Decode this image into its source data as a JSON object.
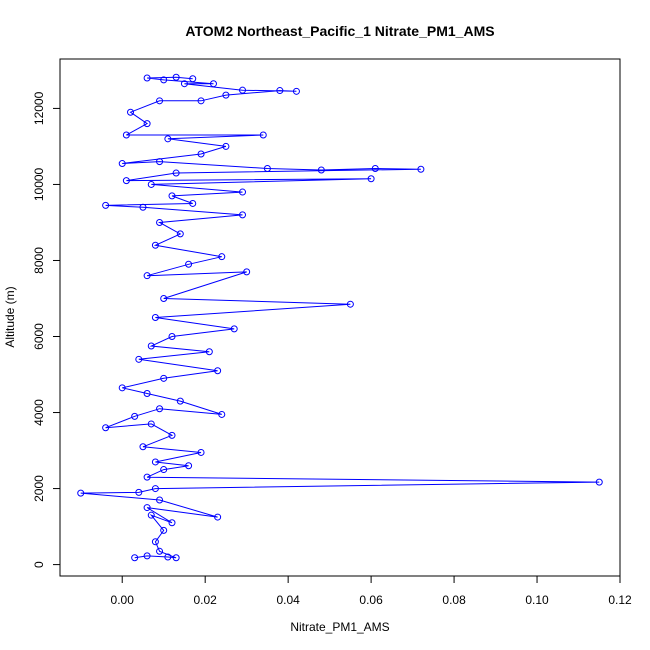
{
  "chart_data": {
    "type": "scatter",
    "title": "ATOM2 Northeast_Pacific_1 Nitrate_PM1_AMS",
    "xlabel": "Nitrate_PM1_AMS",
    "ylabel": "Altitude (m)",
    "xlim": [
      -0.015,
      0.12
    ],
    "ylim": [
      -300,
      13300
    ],
    "xticks": [
      0.0,
      0.02,
      0.04,
      0.06,
      0.08,
      0.1,
      0.12
    ],
    "xtick_labels": [
      "0.00",
      "0.02",
      "0.04",
      "0.06",
      "0.08",
      "0.10",
      "0.12"
    ],
    "yticks": [
      0,
      2000,
      4000,
      6000,
      8000,
      10000,
      12000
    ],
    "ytick_labels": [
      "0",
      "2000",
      "4000",
      "6000",
      "8000",
      "10000",
      "12000"
    ],
    "grid": false,
    "series": [
      {
        "color": "#0000ff",
        "marker": "open-circle",
        "line": true,
        "points": [
          [
            0.003,
            180
          ],
          [
            0.006,
            230
          ],
          [
            0.011,
            200
          ],
          [
            0.013,
            180
          ],
          [
            0.009,
            350
          ],
          [
            0.008,
            600
          ],
          [
            0.01,
            900
          ],
          [
            0.007,
            1300
          ],
          [
            0.012,
            1100
          ],
          [
            0.006,
            1500
          ],
          [
            0.023,
            1250
          ],
          [
            0.009,
            1700
          ],
          [
            -0.01,
            1880
          ],
          [
            0.004,
            1900
          ],
          [
            0.008,
            2000
          ],
          [
            0.115,
            2170
          ],
          [
            0.006,
            2300
          ],
          [
            0.01,
            2500
          ],
          [
            0.016,
            2600
          ],
          [
            0.008,
            2700
          ],
          [
            0.019,
            2950
          ],
          [
            0.005,
            3100
          ],
          [
            0.012,
            3400
          ],
          [
            0.007,
            3700
          ],
          [
            -0.004,
            3600
          ],
          [
            0.003,
            3900
          ],
          [
            0.009,
            4100
          ],
          [
            0.024,
            3950
          ],
          [
            0.014,
            4300
          ],
          [
            0.006,
            4500
          ],
          [
            0.0,
            4650
          ],
          [
            0.01,
            4900
          ],
          [
            0.023,
            5100
          ],
          [
            0.004,
            5400
          ],
          [
            0.021,
            5600
          ],
          [
            0.007,
            5750
          ],
          [
            0.012,
            6000
          ],
          [
            0.027,
            6200
          ],
          [
            0.008,
            6500
          ],
          [
            0.055,
            6850
          ],
          [
            0.01,
            7000
          ],
          [
            0.03,
            7700
          ],
          [
            0.006,
            7600
          ],
          [
            0.016,
            7900
          ],
          [
            0.024,
            8100
          ],
          [
            0.008,
            8400
          ],
          [
            0.014,
            8700
          ],
          [
            0.009,
            9000
          ],
          [
            0.029,
            9200
          ],
          [
            0.005,
            9400
          ],
          [
            -0.004,
            9450
          ],
          [
            0.017,
            9500
          ],
          [
            0.012,
            9700
          ],
          [
            0.029,
            9800
          ],
          [
            0.007,
            10000
          ],
          [
            0.06,
            10150
          ],
          [
            0.001,
            10100
          ],
          [
            0.013,
            10300
          ],
          [
            0.072,
            10400
          ],
          [
            0.061,
            10420
          ],
          [
            0.048,
            10380
          ],
          [
            0.035,
            10420
          ],
          [
            0.009,
            10600
          ],
          [
            0.0,
            10550
          ],
          [
            0.019,
            10800
          ],
          [
            0.025,
            11000
          ],
          [
            0.011,
            11200
          ],
          [
            0.034,
            11300
          ],
          [
            0.001,
            11300
          ],
          [
            0.006,
            11600
          ],
          [
            0.002,
            11900
          ],
          [
            0.009,
            12200
          ],
          [
            0.019,
            12200
          ],
          [
            0.025,
            12350
          ],
          [
            0.038,
            12470
          ],
          [
            0.042,
            12450
          ],
          [
            0.029,
            12480
          ],
          [
            0.015,
            12650
          ],
          [
            0.022,
            12650
          ],
          [
            0.01,
            12750
          ],
          [
            0.006,
            12800
          ],
          [
            0.013,
            12820
          ],
          [
            0.017,
            12780
          ]
        ]
      }
    ]
  }
}
